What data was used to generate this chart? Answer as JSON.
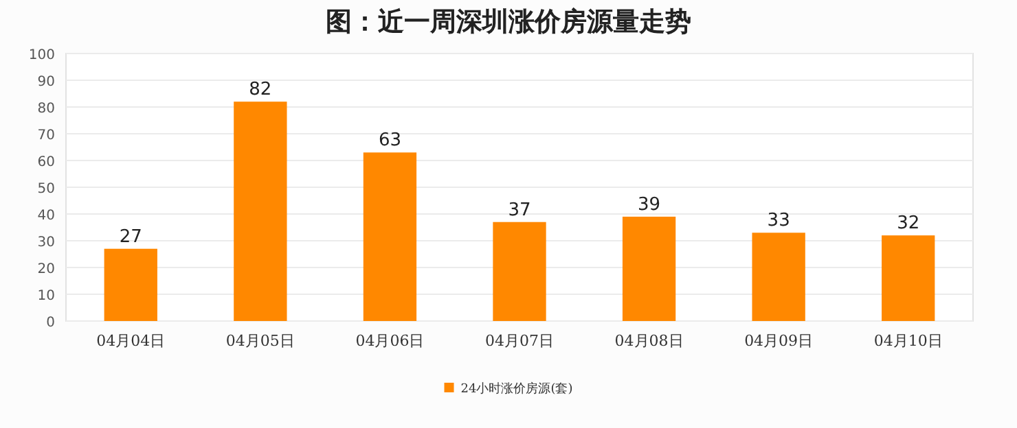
{
  "chart_data": {
    "type": "bar",
    "title": "图：近一周深圳涨价房源量走势",
    "categories": [
      "04月04日",
      "04月05日",
      "04月06日",
      "04月07日",
      "04月08日",
      "04月09日",
      "04月10日"
    ],
    "series": [
      {
        "name": "24小时涨价房源(套)",
        "color": "#ff8800",
        "values": [
          27,
          82,
          63,
          37,
          39,
          33,
          32
        ]
      }
    ],
    "ylim": [
      0,
      100
    ],
    "yticks": [
      0,
      10,
      20,
      30,
      40,
      50,
      60,
      70,
      80,
      90,
      100
    ],
    "grid": "y",
    "legend": "bottom",
    "data_labels": true
  }
}
